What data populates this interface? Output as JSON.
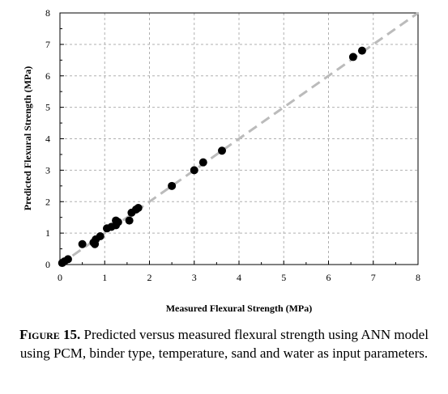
{
  "chart_data": {
    "type": "scatter",
    "xlabel": "Measured Flexural Strength (MPa)",
    "ylabel": "Predicted Flexural Strength (MPa)",
    "xlim": [
      0,
      8
    ],
    "ylim": [
      0,
      8
    ],
    "x_ticks": [
      "0",
      "1",
      "2",
      "3",
      "4",
      "5",
      "6",
      "7",
      "8"
    ],
    "y_ticks": [
      "0",
      "1",
      "2",
      "3",
      "4",
      "5",
      "6",
      "7",
      "8"
    ],
    "grid": true,
    "reference_line": "y = x",
    "marker_color": "#000000",
    "line_color": "#bbbbbb",
    "points": [
      {
        "x": 0.05,
        "y": 0.05
      },
      {
        "x": 0.1,
        "y": 0.1
      },
      {
        "x": 0.18,
        "y": 0.17
      },
      {
        "x": 0.5,
        "y": 0.65
      },
      {
        "x": 0.75,
        "y": 0.7
      },
      {
        "x": 0.78,
        "y": 0.65
      },
      {
        "x": 0.8,
        "y": 0.8
      },
      {
        "x": 0.9,
        "y": 0.9
      },
      {
        "x": 1.05,
        "y": 1.15
      },
      {
        "x": 1.15,
        "y": 1.2
      },
      {
        "x": 1.25,
        "y": 1.25
      },
      {
        "x": 1.25,
        "y": 1.4
      },
      {
        "x": 1.3,
        "y": 1.35
      },
      {
        "x": 1.55,
        "y": 1.4
      },
      {
        "x": 1.6,
        "y": 1.65
      },
      {
        "x": 1.7,
        "y": 1.75
      },
      {
        "x": 1.75,
        "y": 1.8
      },
      {
        "x": 2.5,
        "y": 2.5
      },
      {
        "x": 3.0,
        "y": 3.0
      },
      {
        "x": 3.2,
        "y": 3.25
      },
      {
        "x": 3.62,
        "y": 3.62
      },
      {
        "x": 6.55,
        "y": 6.6
      },
      {
        "x": 6.75,
        "y": 6.8
      }
    ]
  },
  "caption": {
    "label": "Figure 15.",
    "text": "Predicted versus measured flexural strength using ANN model using PCM, binder type, temperature, sand and water as input parameters."
  }
}
